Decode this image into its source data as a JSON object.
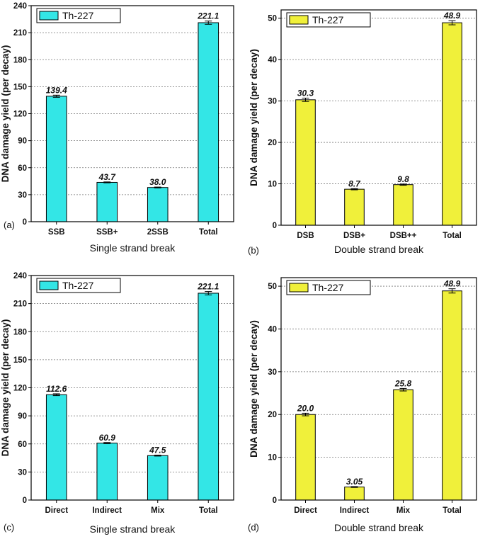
{
  "chart_data": [
    {
      "panel": "(a)",
      "type": "bar",
      "legend": "Th-227",
      "color": "#33e6e6",
      "categories": [
        "SSB",
        "SSB+",
        "2SSB",
        "Total"
      ],
      "values": [
        139.4,
        43.7,
        38.0,
        221.1
      ],
      "value_labels": [
        "139.4",
        "43.7",
        "38.0",
        "221.1"
      ],
      "errors": [
        1.2,
        0.5,
        0.5,
        1.8
      ],
      "ylabel": "DNA damage yield (per decay)",
      "xlabel": "Single strand break",
      "ylim": [
        0,
        240
      ],
      "yticks": [
        0,
        30,
        60,
        90,
        120,
        150,
        180,
        210,
        240
      ],
      "grid": "dotted horizontal"
    },
    {
      "panel": "(b)",
      "type": "bar",
      "legend": "Th-227",
      "color": "#f0f03a",
      "categories": [
        "DSB",
        "DSB+",
        "DSB++",
        "Total"
      ],
      "values": [
        30.3,
        8.7,
        9.8,
        48.9
      ],
      "value_labels": [
        "30.3",
        "8.7",
        "9.8",
        "48.9"
      ],
      "errors": [
        0.4,
        0.15,
        0.15,
        0.5
      ],
      "ylabel": "DNA damage yield (per decay)",
      "xlabel": "Double strand break",
      "ylim": [
        0,
        52
      ],
      "yticks": [
        0,
        10,
        20,
        30,
        40,
        50
      ],
      "grid": "dotted horizontal"
    },
    {
      "panel": "(c)",
      "type": "bar",
      "legend": "Th-227",
      "color": "#33e6e6",
      "categories": [
        "Direct",
        "Indirect",
        "Mix",
        "Total"
      ],
      "values": [
        112.6,
        60.9,
        47.5,
        221.1
      ],
      "value_labels": [
        "112.6",
        "60.9",
        "47.5",
        "221.1"
      ],
      "errors": [
        1.0,
        0.6,
        0.5,
        1.8
      ],
      "ylabel": "DNA damage yield (per decay)",
      "xlabel": "Single strand break",
      "ylim": [
        0,
        240
      ],
      "yticks": [
        0,
        30,
        60,
        90,
        120,
        150,
        180,
        210,
        240
      ],
      "grid": "dotted horizontal"
    },
    {
      "panel": "(d)",
      "type": "bar",
      "legend": "Th-227",
      "color": "#f0f03a",
      "categories": [
        "Direct",
        "Indirect",
        "Mix",
        "Total"
      ],
      "values": [
        20.0,
        3.05,
        25.8,
        48.9
      ],
      "value_labels": [
        "20.0",
        "3.05",
        "25.8",
        "48.9"
      ],
      "errors": [
        0.3,
        0.1,
        0.3,
        0.5
      ],
      "ylabel": "DNA damage yield (per decay)",
      "xlabel": "Double strand break",
      "ylim": [
        0,
        52
      ],
      "yticks": [
        0,
        10,
        20,
        30,
        40,
        50
      ],
      "grid": "dotted horizontal"
    }
  ]
}
